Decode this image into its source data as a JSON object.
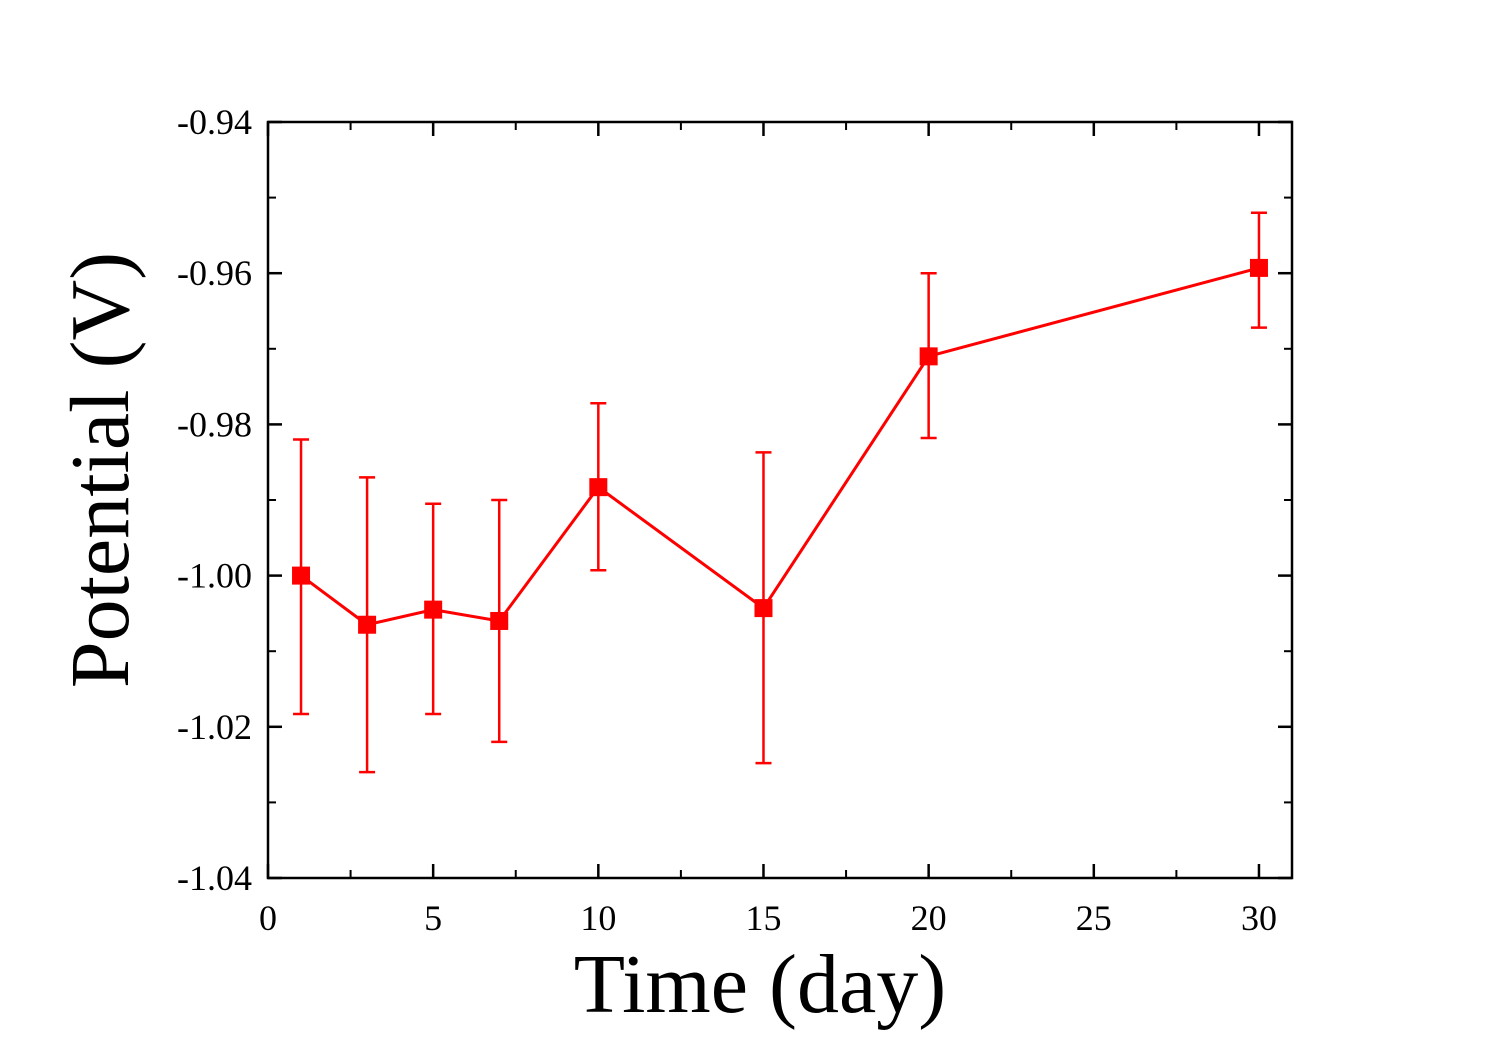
{
  "chart_data": {
    "type": "line",
    "xlabel": "Time (day)",
    "ylabel": "Potential (V)",
    "xlim": [
      0,
      31
    ],
    "ylim": [
      -1.04,
      -0.94
    ],
    "x_ticks": [
      {
        "value": 0,
        "label": "0"
      },
      {
        "value": 5,
        "label": "5"
      },
      {
        "value": 10,
        "label": "10"
      },
      {
        "value": 15,
        "label": "15"
      },
      {
        "value": 20,
        "label": "20"
      },
      {
        "value": 25,
        "label": "25"
      },
      {
        "value": 30,
        "label": "30"
      }
    ],
    "x_minor_ticks": [
      2.5,
      7.5,
      12.5,
      17.5,
      22.5,
      27.5
    ],
    "y_ticks": [
      {
        "value": -1.04,
        "label": "-1.04"
      },
      {
        "value": -1.02,
        "label": "-1.02"
      },
      {
        "value": -1.0,
        "label": "-1.00"
      },
      {
        "value": -0.98,
        "label": "-0.98"
      },
      {
        "value": -0.96,
        "label": "-0.96"
      },
      {
        "value": -0.94,
        "label": "-0.94"
      }
    ],
    "y_minor_ticks": [
      -1.03,
      -1.01,
      -0.99,
      -0.97,
      -0.95
    ],
    "grid": false,
    "legend": "none",
    "series": [
      {
        "color": "#ff0000",
        "marker": "square",
        "x": [
          1,
          3,
          5,
          7,
          10,
          15,
          20,
          30
        ],
        "y": [
          -1.0,
          -1.0065,
          -1.0045,
          -1.006,
          -0.9883,
          -1.0043,
          -0.971,
          -0.9593
        ],
        "error_low": [
          -1.0183,
          -1.026,
          -1.0183,
          -1.022,
          -0.9993,
          -1.0248,
          -0.9818,
          -0.9672
        ],
        "error_high": [
          -0.982,
          -0.987,
          -0.9905,
          -0.99,
          -0.9772,
          -0.9837,
          -0.96,
          -0.952
        ]
      }
    ]
  }
}
